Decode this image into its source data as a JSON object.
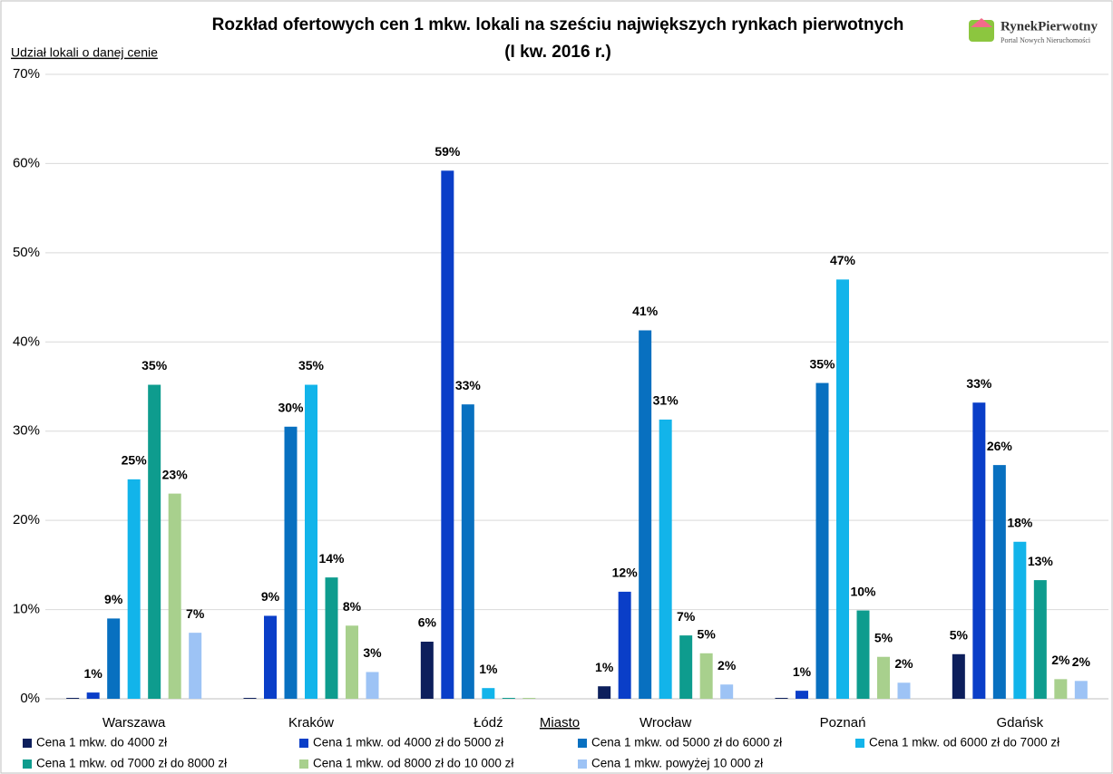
{
  "chart_data": {
    "type": "bar",
    "title": "Rozkład ofertowych cen 1 mkw. lokali na sześciu największych rynkach pierwotnych",
    "subtitle": "(I kw. 2016 r.)",
    "y_label": "Udział lokali o danej cenie",
    "x_label": "Miasto",
    "categories": [
      "Warszawa",
      "Kraków",
      "Łódź",
      "Wrocław",
      "Poznań",
      "Gdańsk"
    ],
    "series": [
      {
        "name": "Cena 1 mkw. do 4000 zł",
        "color": "#0d1f5c",
        "values": [
          0.1,
          0.1,
          6.4,
          1.4,
          0.1,
          5.0
        ],
        "value_labels": [
          null,
          null,
          "6%",
          "1%",
          null,
          "5%"
        ]
      },
      {
        "name": "Cena 1 mkw. od 4000 zł do 5000 zł",
        "color": "#0a3ec8",
        "values": [
          0.7,
          9.3,
          59.2,
          12.0,
          0.9,
          33.2
        ],
        "value_labels": [
          "1%",
          "9%",
          "59%",
          "12%",
          "1%",
          "33%"
        ]
      },
      {
        "name": "Cena 1 mkw. od 5000 zł do 6000 zł",
        "color": "#0870c0",
        "values": [
          9.0,
          30.5,
          33.0,
          41.3,
          35.4,
          26.2
        ],
        "value_labels": [
          "9%",
          "30%",
          "33%",
          "41%",
          "35%",
          "26%"
        ]
      },
      {
        "name": "Cena 1 mkw. od 6000 zł do 7000 zł",
        "color": "#12b4ea",
        "values": [
          24.6,
          35.2,
          1.2,
          31.3,
          47.0,
          17.6
        ],
        "value_labels": [
          "25%",
          "35%",
          "1%",
          "31%",
          "47%",
          "18%"
        ]
      },
      {
        "name": "Cena 1 mkw. od 7000 zł do 8000 zł",
        "color": "#0e9c8e",
        "values": [
          35.2,
          13.6,
          0.1,
          7.1,
          9.9,
          13.3
        ],
        "value_labels": [
          "35%",
          "14%",
          null,
          "7%",
          "10%",
          "13%"
        ]
      },
      {
        "name": "Cena 1 mkw. od 8000 zł do 10 000 zł",
        "color": "#a8d08d",
        "values": [
          23.0,
          8.2,
          0.1,
          5.1,
          4.7,
          2.2
        ],
        "value_labels": [
          "23%",
          "8%",
          null,
          "5%",
          "5%",
          "2%"
        ]
      },
      {
        "name": "Cena 1 mkw. powyżej 10 000 zł",
        "color": "#9dc3f5",
        "values": [
          7.4,
          3.0,
          0,
          1.6,
          1.8,
          2.0
        ],
        "value_labels": [
          "7%",
          "3%",
          null,
          "2%",
          "2%",
          "2%"
        ]
      }
    ],
    "ylim": [
      0,
      70
    ],
    "yticks": [
      {
        "value": 0,
        "label": "0%"
      },
      {
        "value": 10,
        "label": "10%"
      },
      {
        "value": 20,
        "label": "20%"
      },
      {
        "value": 30,
        "label": "30%"
      },
      {
        "value": 40,
        "label": "40%"
      },
      {
        "value": 50,
        "label": "50%"
      },
      {
        "value": 60,
        "label": "60%"
      },
      {
        "value": 70,
        "label": "70%"
      }
    ],
    "grid": true
  },
  "logo": {
    "name": "RynekPierwotny",
    "tagline": "Portal Nowych Nieruchomości"
  }
}
